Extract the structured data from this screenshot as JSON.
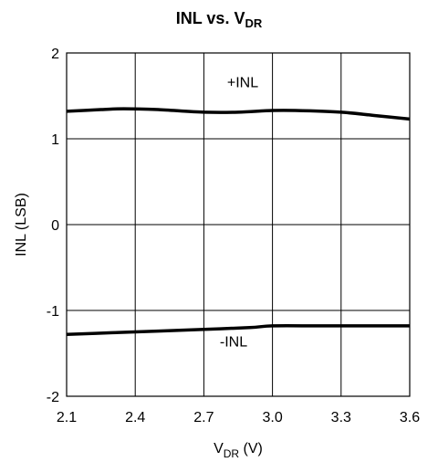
{
  "chart_data": {
    "type": "line",
    "title": "INL vs. V",
    "title_subscript": "DR",
    "xlabel": "V",
    "xlabel_subscript": "DR",
    "xlabel_unit": " (V)",
    "ylabel": "INL (LSB)",
    "xlim": [
      2.1,
      3.6
    ],
    "ylim": [
      -2,
      2
    ],
    "x_ticks": [
      "2.1",
      "2.4",
      "2.7",
      "3.0",
      "3.3",
      "3.6"
    ],
    "y_ticks": [
      "2",
      "1",
      "0",
      "-1",
      "-2"
    ],
    "grid": true,
    "series": [
      {
        "name": "+INL",
        "x": [
          2.1,
          2.25,
          2.35,
          2.5,
          2.7,
          2.85,
          3.0,
          3.1,
          3.3,
          3.45,
          3.6
        ],
        "y": [
          1.32,
          1.34,
          1.35,
          1.34,
          1.31,
          1.31,
          1.33,
          1.33,
          1.31,
          1.27,
          1.23
        ]
      },
      {
        "name": "-INL",
        "x": [
          2.1,
          2.3,
          2.5,
          2.7,
          2.9,
          3.0,
          3.2,
          3.4,
          3.6
        ],
        "y": [
          -1.28,
          -1.26,
          -1.24,
          -1.22,
          -1.2,
          -1.18,
          -1.18,
          -1.18,
          -1.18
        ]
      }
    ]
  }
}
